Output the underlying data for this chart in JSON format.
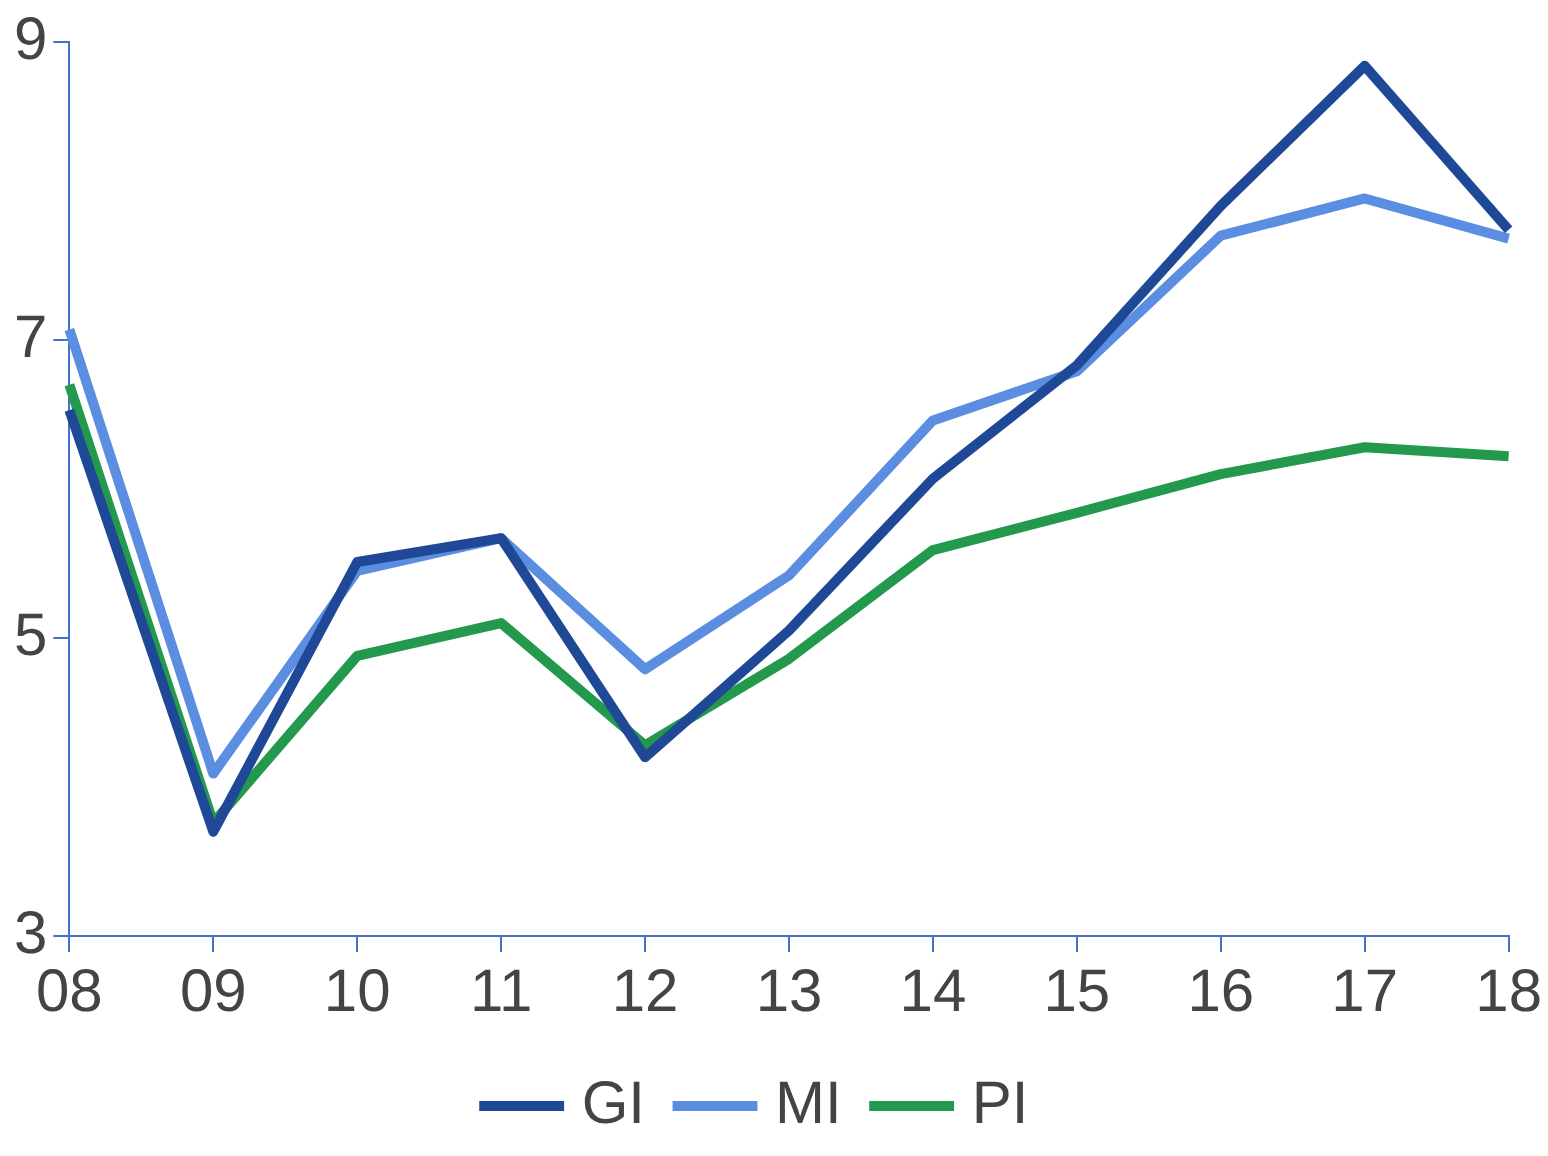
{
  "chart_data": {
    "type": "line",
    "categories": [
      "08",
      "09",
      "10",
      "11",
      "12",
      "13",
      "14",
      "15",
      "16",
      "17",
      "18"
    ],
    "ylim": [
      3,
      9
    ],
    "yticks": [
      3,
      5,
      7,
      9
    ],
    "grid": false,
    "legend": "bottom",
    "marker": "none",
    "series": [
      {
        "name": "GI",
        "color": "#1f4896",
        "values": [
          6.53,
          3.7,
          5.51,
          5.67,
          4.2,
          5.05,
          6.07,
          6.83,
          7.9,
          8.84,
          7.74
        ]
      },
      {
        "name": "MI",
        "color": "#5b8ee0",
        "values": [
          7.07,
          4.09,
          5.45,
          5.67,
          4.79,
          5.42,
          6.46,
          6.79,
          7.7,
          7.95,
          7.68
        ]
      },
      {
        "name": "PI",
        "color": "#22994c",
        "values": [
          6.7,
          3.76,
          4.88,
          5.1,
          4.28,
          4.86,
          5.59,
          5.84,
          6.1,
          6.28,
          6.22
        ]
      }
    ]
  }
}
